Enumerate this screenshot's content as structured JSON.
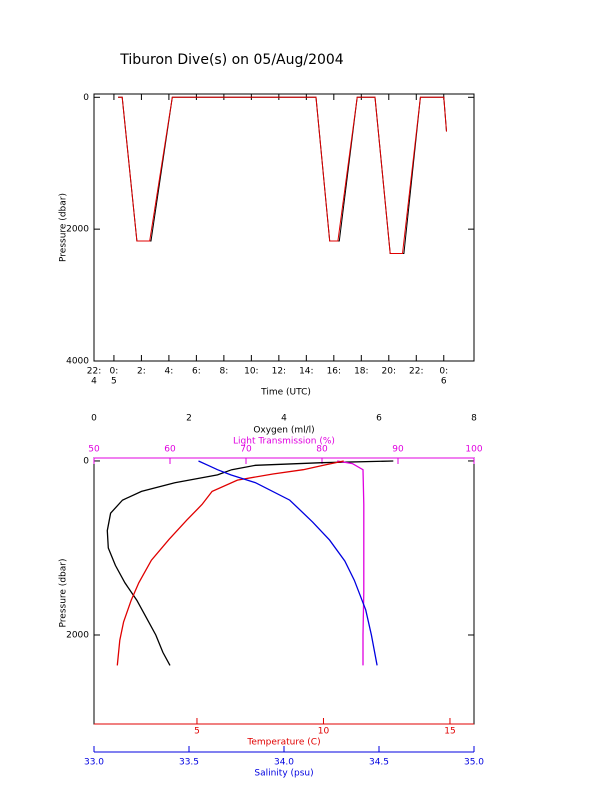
{
  "chart_data": [
    {
      "type": "line",
      "title": "Tiburon Dive(s) on 05/Aug/2004",
      "xlabel": "Time (UTC)",
      "ylabel": "Pressure (dbar)",
      "xlim": [
        -1.45,
        26.2
      ],
      "xticks": [
        {
          "value": -1.45,
          "label": "22:",
          "sublabel": "4"
        },
        {
          "value": 0,
          "label": "0:",
          "sublabel": "5"
        },
        {
          "value": 2,
          "label": "2:"
        },
        {
          "value": 4,
          "label": "4:"
        },
        {
          "value": 6,
          "label": "6:"
        },
        {
          "value": 8,
          "label": "8:"
        },
        {
          "value": 10,
          "label": "10:"
        },
        {
          "value": 12,
          "label": "12:"
        },
        {
          "value": 14,
          "label": "14:"
        },
        {
          "value": 16,
          "label": "16:"
        },
        {
          "value": 18,
          "label": "18:"
        },
        {
          "value": 20,
          "label": "20:"
        },
        {
          "value": 22,
          "label": "22:"
        },
        {
          "value": 24,
          "label": "0:",
          "sublabel": "6"
        }
      ],
      "ylim": [
        -50,
        4000
      ],
      "yticks": [
        0,
        2000,
        4000
      ],
      "y_inverted": true,
      "series": [
        {
          "color": "#000000",
          "x": [
            0.3,
            0.6,
            1.67,
            2.7,
            4.25,
            14.7,
            15.7,
            16.4,
            17.7,
            19.0,
            20.1,
            21.1,
            22.3,
            24.0,
            24.2
          ],
          "values": [
            0,
            0,
            2180,
            2180,
            0,
            0,
            2180,
            2180,
            0,
            0,
            2370,
            2370,
            0,
            0,
            520
          ]
        },
        {
          "color": "#e00000",
          "x": [
            0.3,
            0.6,
            1.67,
            2.6,
            4.25,
            14.7,
            15.7,
            16.3,
            17.7,
            19.0,
            20.1,
            21.0,
            22.3,
            24.0,
            24.2
          ],
          "values": [
            0,
            0,
            2180,
            2180,
            0,
            0,
            2180,
            2180,
            0,
            0,
            2370,
            2370,
            0,
            0,
            520
          ]
        }
      ]
    },
    {
      "type": "profile",
      "ylabel": "Pressure (dbar)",
      "ylim": [
        -34,
        3023
      ],
      "yticks": [
        0,
        2000
      ],
      "y_inverted": true,
      "x_axes": [
        {
          "label": "Oxygen (ml/l)",
          "position": "top",
          "color": "#000000",
          "xlim": [
            0,
            8
          ],
          "xticks": [
            0,
            2,
            4,
            6,
            8
          ]
        },
        {
          "label": "Light Transmission (%)",
          "position": "top",
          "color": "#e000e0",
          "xlim": [
            50,
            100
          ],
          "xticks": [
            50,
            60,
            70,
            80,
            90,
            100
          ]
        },
        {
          "label": "Temperature (C)",
          "position": "bottom",
          "color": "#e00000",
          "xlim": [
            0.93,
            15.95
          ],
          "xticks": [
            5,
            10,
            15
          ]
        },
        {
          "label": "Salinity (psu)",
          "position": "bottom",
          "color": "#0000e0",
          "xlim": [
            33,
            35
          ],
          "xticks": [
            {
              "value": 33,
              "label": "33.0"
            },
            33.5,
            {
              "value": 34,
              "label": "34.0"
            },
            34.5,
            {
              "value": 35,
              "label": "35.0"
            }
          ]
        }
      ],
      "series": [
        {
          "x_axis": 0,
          "color": "#000000",
          "x": [
            6.3,
            4.8,
            3.4,
            2.9,
            2.6,
            1.7,
            1.0,
            0.6,
            0.35,
            0.28,
            0.3,
            0.45,
            0.65,
            0.9,
            1.1,
            1.3,
            1.45,
            1.6
          ],
          "values": [
            0,
            20,
            50,
            100,
            160,
            250,
            350,
            450,
            600,
            800,
            1000,
            1200,
            1400,
            1600,
            1800,
            2000,
            2200,
            2350
          ]
        },
        {
          "x_axis": 1,
          "color": "#e000e0",
          "x": [
            82,
            84,
            85.4,
            85.5,
            85.5,
            85.5,
            85.4,
            85.4
          ],
          "values": [
            0,
            30,
            100,
            500,
            1000,
            1500,
            2000,
            2350
          ]
        },
        {
          "x_axis": 2,
          "color": "#e00000",
          "x": [
            10.8,
            10.0,
            9.2,
            8.0,
            6.6,
            5.6,
            5.2,
            4.6,
            3.9,
            3.2,
            2.7,
            2.4,
            2.1,
            1.95,
            1.85
          ],
          "values": [
            0,
            50,
            100,
            150,
            220,
            350,
            500,
            680,
            900,
            1140,
            1400,
            1600,
            1850,
            2060,
            2350
          ]
        },
        {
          "x_axis": 3,
          "color": "#0000e0",
          "x": [
            33.55,
            33.6,
            33.65,
            33.72,
            33.85,
            34.03,
            34.15,
            34.24,
            34.32,
            34.37,
            34.43,
            34.46,
            34.49
          ],
          "values": [
            0,
            50,
            100,
            160,
            250,
            450,
            700,
            910,
            1150,
            1370,
            1710,
            2000,
            2350
          ]
        }
      ]
    }
  ]
}
